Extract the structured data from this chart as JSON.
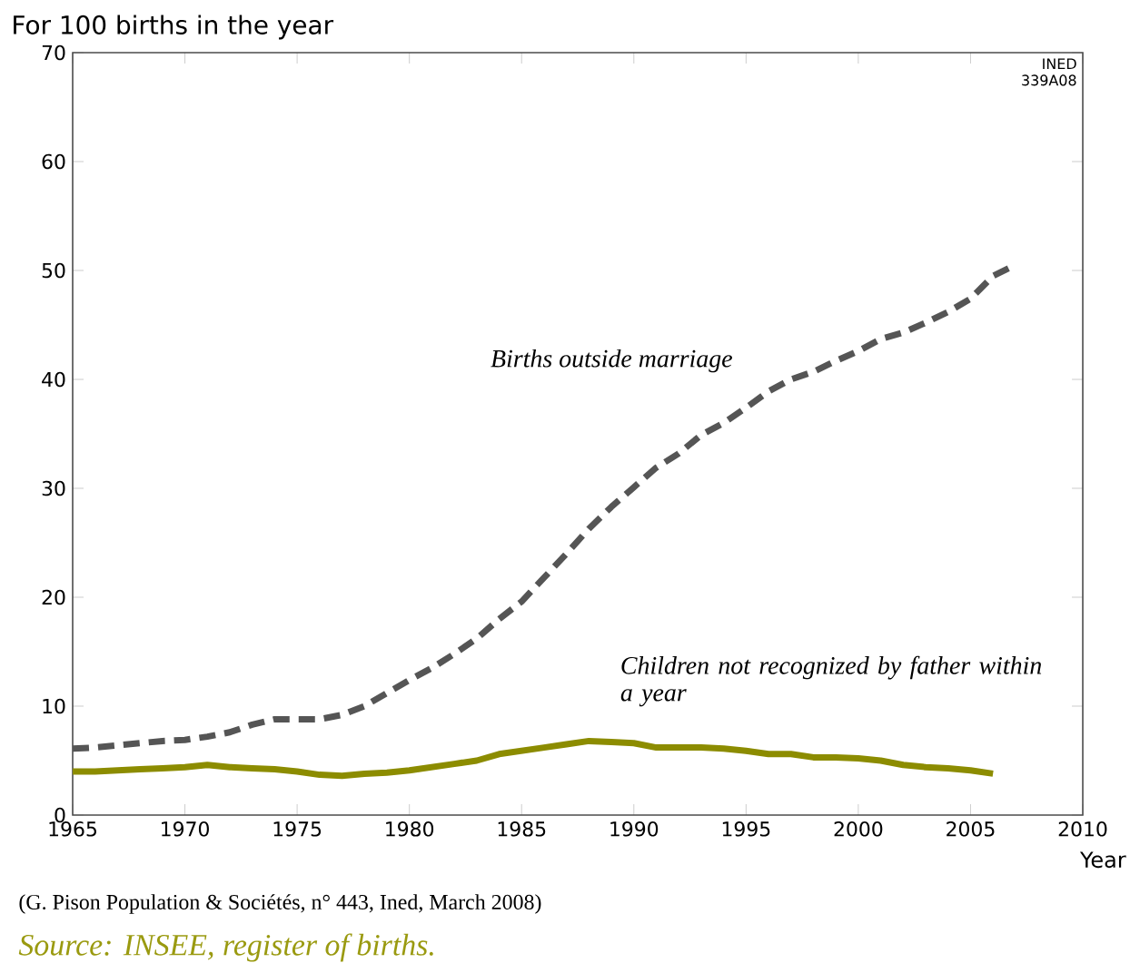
{
  "chart_data": {
    "type": "line",
    "ylabel": "For 100 births in the year",
    "xlabel": "Year",
    "annotations": [
      "INED",
      "339A08",
      "(G. Pison Population & Sociétés, n° 443, Ined, March 2008)",
      "Source: INSEE, register of births."
    ],
    "xlim": [
      1965,
      2010
    ],
    "xticks": [
      1965,
      1970,
      1975,
      1980,
      1985,
      1990,
      1995,
      2000,
      2005,
      2010
    ],
    "ylim": [
      0,
      70
    ],
    "yticks": [
      0,
      10,
      20,
      30,
      40,
      50,
      60,
      70
    ],
    "grid": false,
    "legend": false,
    "marker": "none",
    "series": [
      {
        "name": "Births outside marriage",
        "color": "#555555",
        "line_style": "dashed",
        "x": [
          1965,
          1966,
          1967,
          1968,
          1969,
          1970,
          1971,
          1972,
          1973,
          1974,
          1975,
          1976,
          1977,
          1978,
          1979,
          1980,
          1981,
          1982,
          1983,
          1984,
          1985,
          1986,
          1987,
          1988,
          1989,
          1990,
          1991,
          1992,
          1993,
          1994,
          1995,
          1996,
          1997,
          1998,
          1999,
          2000,
          2001,
          2002,
          2003,
          2004,
          2005,
          2006,
          2007
        ],
        "values": [
          6.1,
          6.2,
          6.4,
          6.6,
          6.8,
          6.9,
          7.2,
          7.6,
          8.3,
          8.8,
          8.8,
          8.8,
          9.2,
          10.0,
          11.2,
          12.4,
          13.5,
          14.8,
          16.2,
          18.0,
          19.6,
          21.8,
          24.0,
          26.3,
          28.3,
          30.1,
          31.9,
          33.2,
          34.9,
          36.0,
          37.4,
          38.9,
          40.0,
          40.7,
          41.7,
          42.6,
          43.7,
          44.3,
          45.2,
          46.2,
          47.4,
          49.5,
          50.5
        ]
      },
      {
        "name": "Children not recognized by father within a year",
        "color": "#8c8c00",
        "line_style": "solid",
        "x": [
          1965,
          1966,
          1967,
          1968,
          1969,
          1970,
          1971,
          1972,
          1973,
          1974,
          1975,
          1976,
          1977,
          1978,
          1979,
          1980,
          1981,
          1982,
          1983,
          1984,
          1985,
          1986,
          1987,
          1988,
          1989,
          1990,
          1991,
          1992,
          1993,
          1994,
          1995,
          1996,
          1997,
          1998,
          1999,
          2000,
          2001,
          2002,
          2003,
          2004,
          2005,
          2006
        ],
        "values": [
          4.0,
          4.0,
          4.1,
          4.2,
          4.3,
          4.4,
          4.6,
          4.4,
          4.3,
          4.2,
          4.0,
          3.7,
          3.6,
          3.8,
          3.9,
          4.1,
          4.4,
          4.7,
          5.0,
          5.6,
          5.9,
          6.2,
          6.5,
          6.8,
          6.7,
          6.6,
          6.2,
          6.2,
          6.2,
          6.1,
          5.9,
          5.6,
          5.6,
          5.3,
          5.3,
          5.2,
          5.0,
          4.6,
          4.4,
          4.3,
          4.1,
          3.8
        ]
      }
    ]
  }
}
